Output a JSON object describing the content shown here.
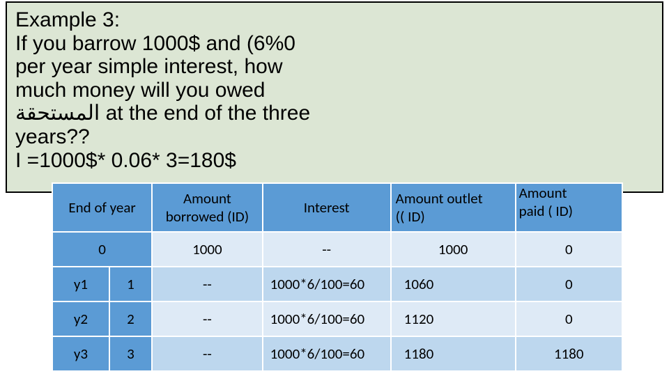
{
  "example": {
    "lines": [
      "Example 3:",
      " If you barrow 1000$ and (6%0",
      "per year simple interest, how",
      "much money will you owed",
      "المستحقة at the end of the three",
      "years??",
      "I =1000$* 0.06* 3=180$"
    ]
  },
  "table": {
    "headers": {
      "end_of_year": "End of year",
      "amount_borrowed": "Amount borrowed (ID)",
      "interest": "Interest",
      "amount_outlet_l1": "Amount outlet",
      "amount_outlet_l2": "(( ID)",
      "amount_paid_l0": "Amount",
      "amount_paid_l1": "paid ( ID)"
    },
    "rows": [
      {
        "label_a": "",
        "label_b": "0",
        "borrowed": "1000",
        "interest": "--",
        "outlet": "1000",
        "paid": "0",
        "shade": "light",
        "span_first": true,
        "interest_center": true,
        "outlet_center": true
      },
      {
        "label_a": "y1",
        "label_b": "1",
        "borrowed": "--",
        "interest": "1000*6/100=60",
        "outlet": "1060",
        "paid": "0",
        "shade": "mid",
        "span_first": false,
        "interest_center": false,
        "outlet_center": false
      },
      {
        "label_a": "y2",
        "label_b": "2",
        "borrowed": "--",
        "interest": "1000*6/100=60",
        "outlet": "1120",
        "paid": "0",
        "shade": "light",
        "span_first": false,
        "interest_center": false,
        "outlet_center": false
      },
      {
        "label_a": "y3",
        "label_b": "3",
        "borrowed": "--",
        "interest": "1000*6/100=60",
        "outlet": "1180",
        "paid": "1180",
        "shade": "mid",
        "span_first": false,
        "interest_center": false,
        "outlet_center": false
      }
    ]
  },
  "colors": {
    "header_bg": "#5b9bd5",
    "row_light": "#deeaf6",
    "row_mid": "#bdd7ee",
    "example_bg": "#dce6d4"
  }
}
